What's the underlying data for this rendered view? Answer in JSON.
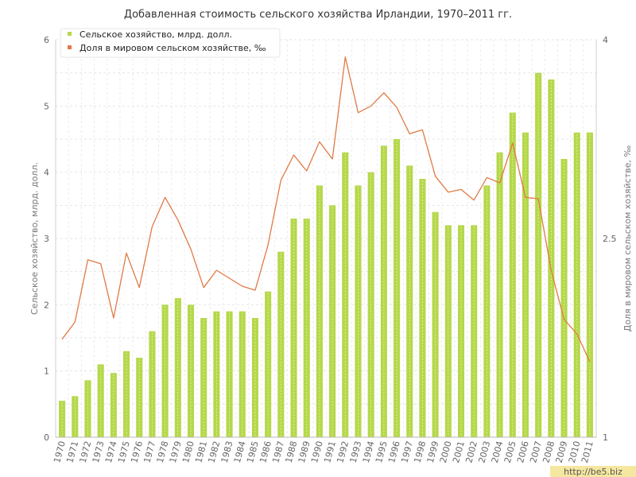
{
  "chart_data": {
    "type": "bar",
    "title": "Добавленная стоимость сельского хозяйства Ирландии, 1970–2011 гг.",
    "ylabel": "Сельское хозяйство, млрд. долл.",
    "y2label": "Доля в мировом сельском хозяйстве, ‰",
    "ylim": [
      0,
      6
    ],
    "y2lim": [
      1,
      4
    ],
    "yticks": [
      "0",
      "1",
      "2",
      "3",
      "4",
      "5",
      "6"
    ],
    "y2ticks": [
      "1",
      "2.5",
      "4"
    ],
    "grid": true,
    "legend_position": "top-left",
    "categories": [
      "1970",
      "1971",
      "1972",
      "1973",
      "1974",
      "1975",
      "1976",
      "1977",
      "1978",
      "1979",
      "1980",
      "1981",
      "1982",
      "1983",
      "1984",
      "1985",
      "1986",
      "1987",
      "1988",
      "1989",
      "1990",
      "1991",
      "1992",
      "1993",
      "1994",
      "1995",
      "1996",
      "1997",
      "1998",
      "1999",
      "2000",
      "2001",
      "2002",
      "2003",
      "2004",
      "2005",
      "2006",
      "2007",
      "2008",
      "2009",
      "2010",
      "2011"
    ],
    "series": [
      {
        "name": "Сельское хозяйство, млрд. долл.",
        "type": "bar",
        "axis": "left",
        "color": "#b5d84a",
        "values": [
          0.55,
          0.62,
          0.86,
          1.1,
          0.97,
          1.3,
          1.2,
          1.6,
          2.0,
          2.1,
          2.0,
          1.8,
          1.9,
          1.9,
          1.9,
          1.8,
          2.2,
          2.8,
          3.3,
          3.3,
          3.8,
          3.5,
          4.3,
          3.8,
          4.0,
          4.4,
          4.5,
          4.1,
          3.9,
          3.4,
          3.2,
          3.2,
          3.2,
          3.8,
          4.3,
          4.9,
          4.6,
          5.5,
          5.4,
          4.2,
          4.6,
          4.6
        ]
      },
      {
        "name": "Доля в мировом сельском хозяйстве, ‰",
        "type": "line",
        "axis": "right",
        "color": "#e07a45",
        "values": [
          1.74,
          1.87,
          2.34,
          2.31,
          1.9,
          2.39,
          2.13,
          2.59,
          2.81,
          2.64,
          2.42,
          2.13,
          2.26,
          2.2,
          2.14,
          2.11,
          2.45,
          2.94,
          3.13,
          3.01,
          3.23,
          3.1,
          3.87,
          3.45,
          3.5,
          3.6,
          3.49,
          3.29,
          3.32,
          2.97,
          2.85,
          2.87,
          2.79,
          2.96,
          2.92,
          3.22,
          2.81,
          2.8,
          2.26,
          1.89,
          1.78,
          1.57
        ]
      }
    ]
  },
  "watermark": "http://be5.biz"
}
